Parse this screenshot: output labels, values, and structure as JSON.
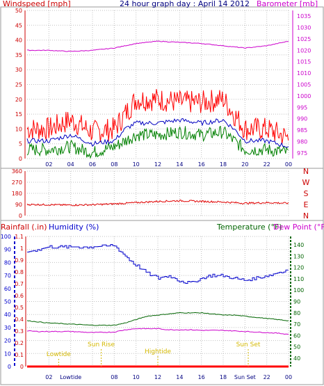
{
  "title": "24 hour graph day : April 14 2012",
  "colors": {
    "wind": "#ff0000",
    "avg": "#0000c0",
    "gust_low": "#008000",
    "baro": "#cc00cc",
    "dir": "#e00000",
    "rain": "#ff0000",
    "hum": "#0000cc",
    "temp": "#006400",
    "dew": "#cc00cc",
    "event": "#d4b800",
    "grid": "#c0c0c0"
  },
  "x_ticks": [
    "02",
    "04",
    "06",
    "08",
    "10",
    "12",
    "14",
    "16",
    "18",
    "20",
    "22",
    "00"
  ],
  "bottom_x_labels": [
    "02",
    "Lowtide",
    "",
    "08",
    "10",
    "12",
    "14",
    "16",
    "18",
    "Sun Set",
    "22",
    "00"
  ],
  "chart_data": [
    {
      "type": "line",
      "name": "wind-barometer",
      "left_label": "Windspeed [mph]",
      "right_label": "Barometer [mb]",
      "y_ticks_left": [
        0,
        5,
        10,
        15,
        20,
        25,
        30,
        35,
        40,
        45,
        50
      ],
      "y_ticks_right": [
        975,
        980,
        985,
        990,
        995,
        1000,
        1005,
        1010,
        1015,
        1020,
        1025,
        1030,
        1035
      ],
      "ylim_left": [
        0,
        50
      ],
      "ylim_right": [
        972.5,
        1037.5
      ],
      "x": [
        0,
        2,
        4,
        6,
        8,
        9,
        10,
        12,
        14,
        16,
        18,
        19,
        20,
        22,
        24
      ],
      "series": [
        {
          "values": [
            10,
            10,
            13,
            9,
            10,
            15,
            20,
            20,
            19,
            19,
            20,
            15,
            10,
            10,
            7
          ]
        },
        {
          "values": [
            6,
            6,
            8,
            5,
            6,
            10,
            12,
            12,
            13,
            12,
            13,
            10,
            6,
            6,
            4
          ]
        },
        {
          "values": [
            3,
            3,
            4,
            2,
            4,
            6,
            8,
            8,
            9,
            8,
            9,
            6,
            3,
            3,
            2
          ]
        },
        {
          "values": [
            1020,
            1020,
            1019.5,
            1020,
            1021,
            1022,
            1023,
            1024,
            1023.5,
            1023,
            1022,
            1021.5,
            1021,
            1022,
            1024
          ]
        }
      ]
    },
    {
      "type": "line",
      "name": "wind-direction",
      "y_ticks": [
        0,
        90,
        180,
        270,
        360
      ],
      "right_letters": [
        "N",
        "W",
        "S",
        "E",
        "N"
      ],
      "ylim": [
        0,
        360
      ],
      "x": [
        0,
        2,
        4,
        6,
        8,
        10,
        12,
        14,
        16,
        18,
        20,
        22,
        24
      ],
      "series": [
        {
          "values": [
            90,
            88,
            85,
            88,
            95,
            105,
            115,
            120,
            115,
            110,
            100,
            105,
            100
          ]
        }
      ]
    },
    {
      "type": "line",
      "name": "rain-humidity-temp",
      "rain_label": "Rainfall (.in)",
      "hum_label": "Humidity (%)",
      "temp_label": "Temperature (°F)",
      "dew_label": "Dew Point (°F)",
      "y_ticks_hum": [
        0,
        10,
        20,
        30,
        40,
        50,
        60,
        70,
        80,
        90,
        100
      ],
      "y_ticks_rain": [
        "0",
        "0.1",
        "0.2",
        "0.3",
        "0.4",
        "0.5",
        "0.6",
        "0.7",
        "0.8",
        "0.9",
        "1",
        "1.1"
      ],
      "y_ticks_temp": [
        40,
        50,
        60,
        70,
        80,
        90,
        100,
        110,
        120,
        130,
        140
      ],
      "ylim_hum": [
        0,
        100
      ],
      "ylim_temp": [
        32.5,
        147.5
      ],
      "x": [
        0,
        1,
        2,
        4,
        6,
        8,
        9,
        10,
        11,
        12,
        13,
        14,
        15,
        16,
        17,
        18,
        19,
        20,
        21,
        22,
        23,
        24
      ],
      "series": [
        {
          "values": [
            0,
            0,
            0,
            0,
            0,
            0,
            0,
            0,
            0,
            0,
            0,
            0,
            0,
            0,
            0,
            0,
            0,
            0,
            0,
            0,
            0,
            0
          ]
        },
        {
          "values": [
            88,
            90,
            92,
            92,
            92,
            93,
            85,
            78,
            72,
            68,
            70,
            66,
            64,
            68,
            70,
            70,
            68,
            66,
            68,
            70,
            72,
            75
          ]
        },
        {
          "values": [
            73,
            72,
            71,
            70,
            69,
            69,
            71,
            74,
            77,
            78,
            79,
            80,
            80,
            80,
            79,
            78,
            78,
            77,
            76,
            75,
            74,
            73
          ]
        },
        {
          "values": [
            64,
            63.5,
            63.5,
            63.5,
            62.5,
            63,
            65,
            66,
            66,
            66,
            65,
            65,
            65,
            64.5,
            64.5,
            64.5,
            64,
            63.5,
            63,
            62.5,
            62,
            61
          ]
        }
      ],
      "events": [
        {
          "label": "Sun Rise",
          "hour": 6.8
        },
        {
          "label": "Lowtide",
          "hour": 2.9
        },
        {
          "label": "Hightide",
          "hour": 12.0
        },
        {
          "label": "Sun Set",
          "hour": 20.3
        }
      ]
    }
  ]
}
